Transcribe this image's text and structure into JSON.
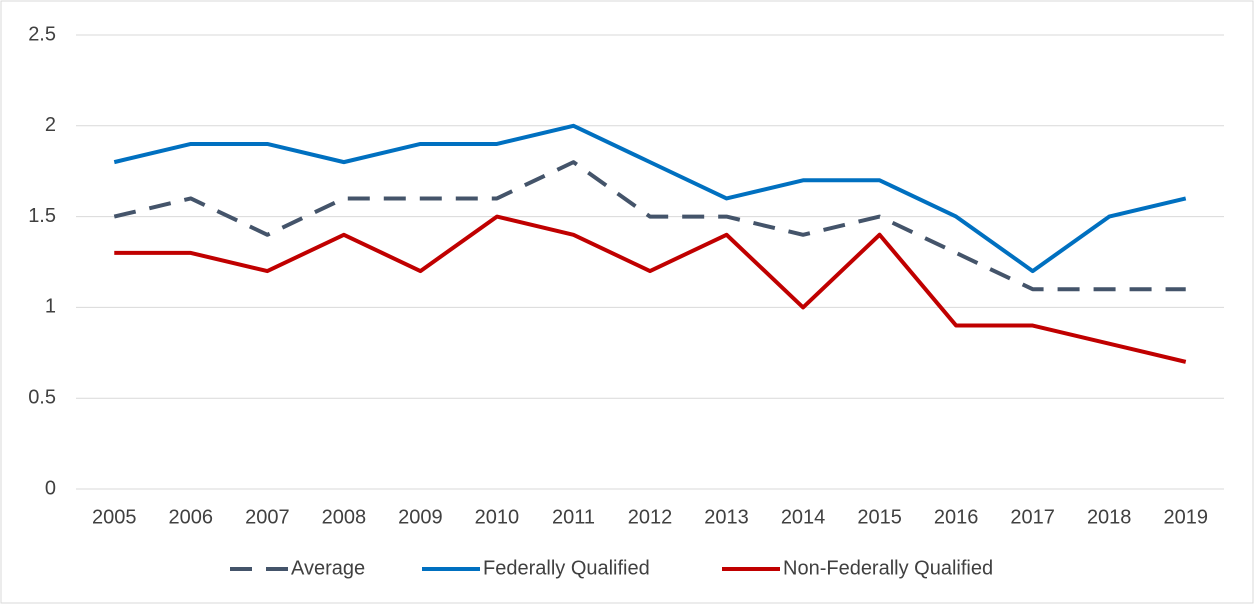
{
  "chart_data": {
    "type": "line",
    "categories": [
      "2005",
      "2006",
      "2007",
      "2008",
      "2009",
      "2010",
      "2011",
      "2012",
      "2013",
      "2014",
      "2015",
      "2016",
      "2017",
      "2018",
      "2019"
    ],
    "series": [
      {
        "name": "Average",
        "color": "#44546a",
        "dashed": true,
        "values": [
          1.5,
          1.6,
          1.4,
          1.6,
          1.6,
          1.6,
          1.8,
          1.5,
          1.5,
          1.4,
          1.5,
          1.3,
          1.1,
          1.1,
          1.1
        ]
      },
      {
        "name": "Federally Qualified",
        "color": "#0070c0",
        "values": [
          1.8,
          1.9,
          1.9,
          1.8,
          1.9,
          1.9,
          2.0,
          1.8,
          1.6,
          1.7,
          1.7,
          1.5,
          1.2,
          1.5,
          1.6
        ]
      },
      {
        "name": "Non-Federally Qualified",
        "color": "#c00000",
        "values": [
          1.3,
          1.3,
          1.2,
          1.4,
          1.2,
          1.5,
          1.4,
          1.2,
          1.4,
          1.0,
          1.4,
          0.9,
          0.9,
          0.8,
          0.7
        ]
      }
    ],
    "ylim": [
      0,
      2.5
    ],
    "yticks": [
      0,
      0.5,
      1,
      1.5,
      2,
      2.5
    ],
    "grid": true,
    "legend": "bottom"
  }
}
